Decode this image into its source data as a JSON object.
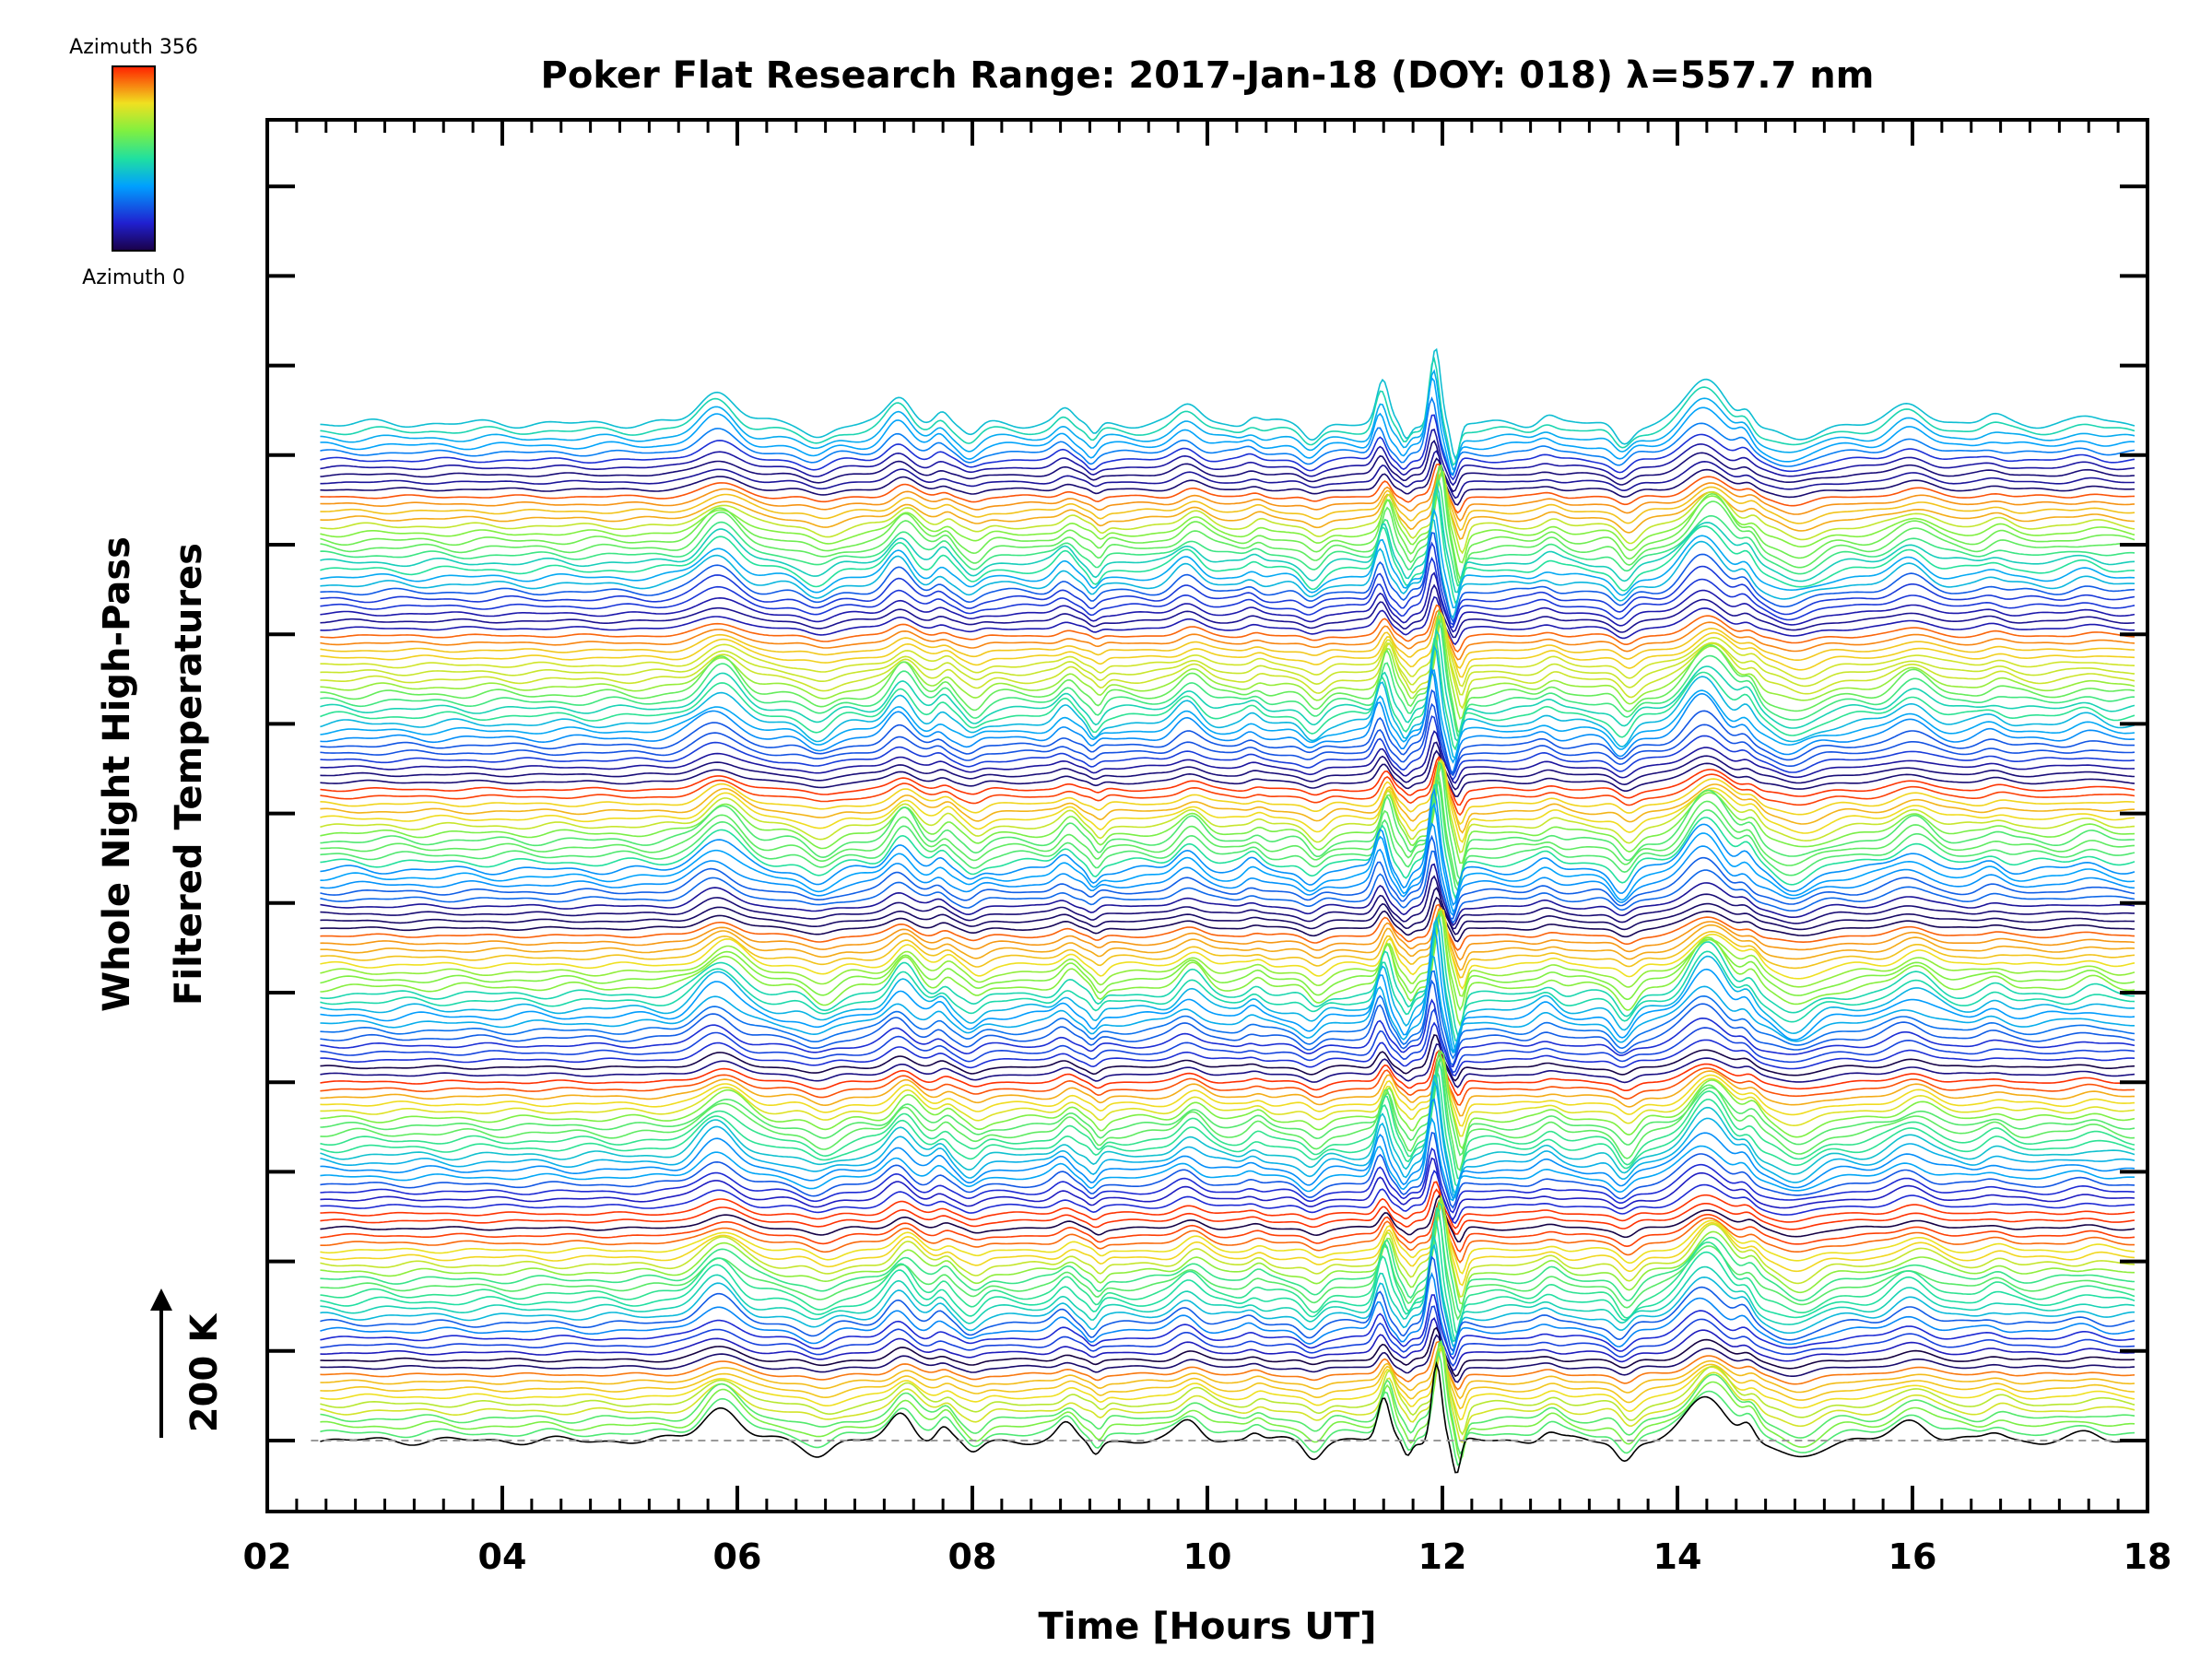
{
  "chart_data": {
    "type": "line",
    "title": "Poker Flat Research Range: 2017-Jan-18 (DOY: 018) λ=557.7 nm",
    "xlabel": "Time [Hours UT]",
    "ylabel_line1": "Whole Night High-Pass",
    "ylabel_line2": "Filtered Temperatures",
    "xlim": [
      2,
      18
    ],
    "x_ticks": [
      "02",
      "04",
      "06",
      "08",
      "10",
      "12",
      "14",
      "16",
      "18"
    ],
    "scale_bar": {
      "label": "200 K",
      "kelvin": 200
    },
    "colorbar": {
      "top_label": "Azimuth 356",
      "bottom_label": "Azimuth 0",
      "min": 0,
      "max": 356,
      "colormap": "rainbow"
    },
    "baseline": 0,
    "time_range_hours": [
      2.45,
      17.9
    ],
    "trace_count": 140,
    "trace_offset_kelvin": 9.8,
    "azimuth_cycle_traces": 20,
    "shared_features": [
      {
        "t": 5.85,
        "amp": 50,
        "width": 0.22
      },
      {
        "t": 6.7,
        "amp": -20,
        "width": 0.15
      },
      {
        "t": 7.4,
        "amp": 42,
        "width": 0.14
      },
      {
        "t": 7.75,
        "amp": 18,
        "width": 0.08
      },
      {
        "t": 8.0,
        "amp": -18,
        "width": 0.1
      },
      {
        "t": 8.8,
        "amp": 22,
        "width": 0.1
      },
      {
        "t": 9.05,
        "amp": -18,
        "width": 0.06
      },
      {
        "t": 9.85,
        "amp": 30,
        "width": 0.14
      },
      {
        "t": 10.4,
        "amp": 12,
        "width": 0.08
      },
      {
        "t": 10.9,
        "amp": -22,
        "width": 0.1
      },
      {
        "t": 11.5,
        "amp": 62,
        "width": 0.07
      },
      {
        "t": 11.7,
        "amp": -22,
        "width": 0.05
      },
      {
        "t": 11.95,
        "amp": 120,
        "width": 0.06
      },
      {
        "t": 12.12,
        "amp": -55,
        "width": 0.05
      },
      {
        "t": 12.9,
        "amp": 14,
        "width": 0.1
      },
      {
        "t": 13.55,
        "amp": -30,
        "width": 0.1
      },
      {
        "t": 14.25,
        "amp": 70,
        "width": 0.22
      },
      {
        "t": 14.6,
        "amp": 22,
        "width": 0.08
      },
      {
        "t": 15.0,
        "amp": -28,
        "width": 0.22
      },
      {
        "t": 16.0,
        "amp": 30,
        "width": 0.2
      },
      {
        "t": 16.7,
        "amp": 12,
        "width": 0.12
      },
      {
        "t": 17.5,
        "amp": 10,
        "width": 0.15
      }
    ]
  }
}
